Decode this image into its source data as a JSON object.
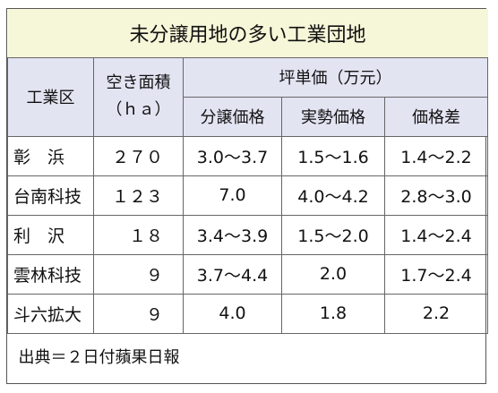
{
  "title": "未分譲用地の多い工業団地",
  "headers": {
    "park": "工業区",
    "area_line1": "空き面積",
    "area_line2": "（ｈａ）",
    "price_group": "坪単価（万元）",
    "sale_price": "分譲価格",
    "market_price": "実勢価格",
    "difference": "価格差"
  },
  "rows": [
    {
      "park": "彰　浜",
      "area": "２７０",
      "sale_price": "3.0～3.7",
      "market_price": "1.5～1.6",
      "difference": "1.4～2.2"
    },
    {
      "park": "台南科技",
      "area": "１２３",
      "sale_price": "7.0",
      "market_price": "4.0～4.2",
      "difference": "2.8～3.0"
    },
    {
      "park": "利　沢",
      "area": "１８",
      "sale_price": "3.4～3.9",
      "market_price": "1.5～2.0",
      "difference": "1.4～2.4"
    },
    {
      "park": "雲林科技",
      "area": "９",
      "sale_price": "3.7～4.4",
      "market_price": "2.0",
      "difference": "1.7～2.4"
    },
    {
      "park": "斗六拡大",
      "area": "９",
      "sale_price": "4.0",
      "market_price": "1.8",
      "difference": "2.2"
    }
  ],
  "source": "出典＝２日付蘋果日報"
}
